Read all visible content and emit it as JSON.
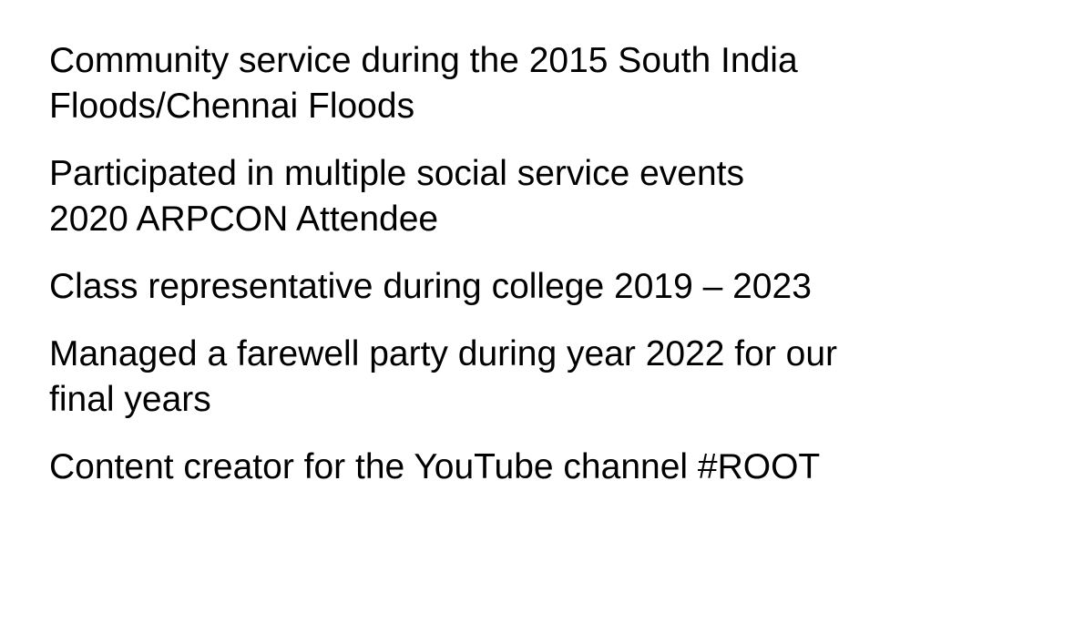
{
  "paragraphs": [
    {
      "lines": [
        "Community service during the 2015 South India",
        "Floods/Chennai Floods"
      ]
    },
    {
      "lines": [
        "Participated in multiple social service events",
        "2020 ARPCON Attendee"
      ]
    },
    {
      "lines": [
        "Class representative during college 2019 – 2023"
      ]
    },
    {
      "lines": [
        "Managed a farewell party during year 2022 for our",
        "final years"
      ]
    },
    {
      "lines": [
        "Content creator for the YouTube channel #ROOT"
      ]
    }
  ]
}
